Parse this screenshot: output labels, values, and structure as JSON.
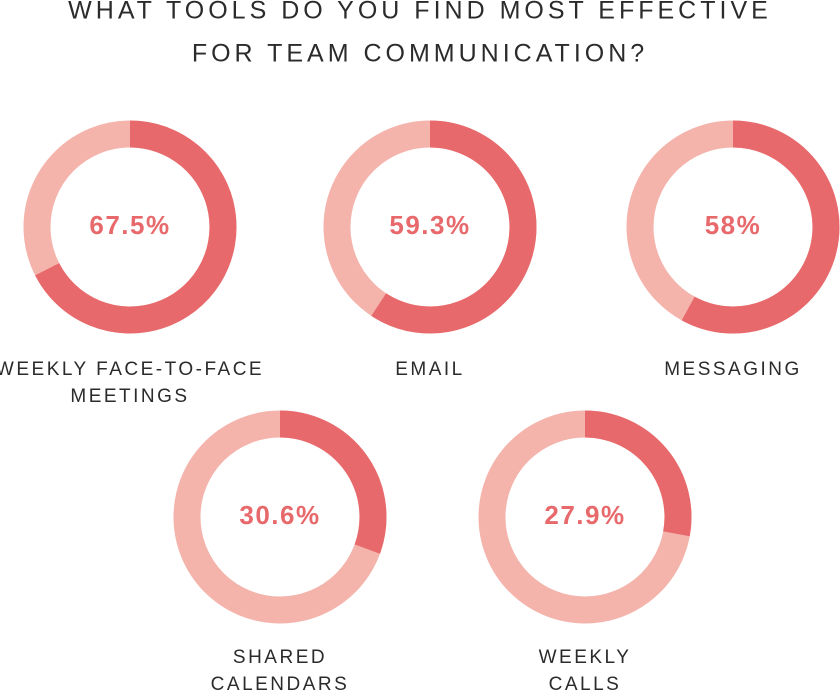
{
  "title": [
    "WHAT TOOLS DO YOU FIND MOST EFFECTIVE",
    "FOR TEAM COMMUNICATION?"
  ],
  "chart_data": [
    {
      "type": "donut",
      "title": [
        "WEEKLY FACE-TO-FACE",
        "MEETINGS"
      ],
      "values": [
        67.5
      ],
      "value_labels": [
        "67.5%"
      ],
      "color": "#e8696b",
      "rest_color": "#f4b4ac"
    },
    {
      "type": "donut",
      "title": [
        "EMAIL"
      ],
      "values": [
        59.3
      ],
      "value_labels": [
        "59.3%"
      ],
      "color": "#e8696b",
      "rest_color": "#f4b4ac"
    },
    {
      "type": "donut",
      "title": [
        "MESSAGING"
      ],
      "values": [
        58
      ],
      "value_labels": [
        "58%"
      ],
      "color": "#e8696b",
      "rest_color": "#f4b4ac"
    },
    {
      "type": "donut",
      "title": [
        "SHARED",
        "CALENDARS"
      ],
      "values": [
        30.6
      ],
      "value_labels": [
        "30.6%"
      ],
      "color": "#e8696b",
      "rest_color": "#f4b4ac"
    },
    {
      "type": "donut",
      "title": [
        "WEEKLY",
        "CALLS"
      ],
      "values": [
        27.9
      ],
      "value_labels": [
        "27.9%"
      ],
      "color": "#e8696b",
      "rest_color": "#f4b4ac"
    }
  ]
}
